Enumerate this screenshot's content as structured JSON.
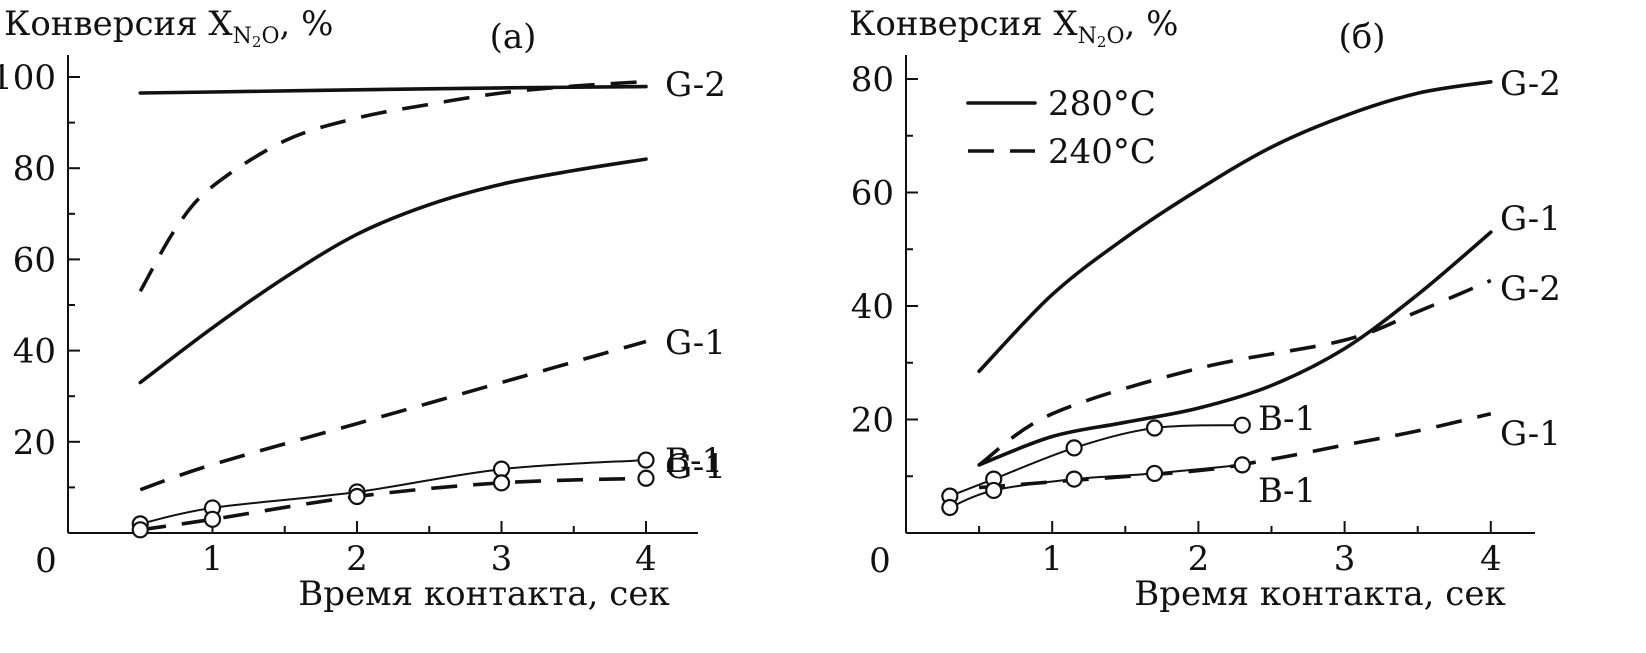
{
  "chart_data": [
    {
      "type": "line",
      "panel_label": "(а)",
      "ylabel": "Конверсия X",
      "ylabel_sub": "N",
      "ylabel_sub2": "2",
      "ylabel_sub3": "O",
      "ylabel_unit": ", %",
      "xlabel": "Время контакта, сек",
      "xlim": [
        0,
        4.3
      ],
      "ylim": [
        0,
        100
      ],
      "x_ticks": [
        "0",
        "1",
        "2",
        "3",
        "4"
      ],
      "y_ticks": [
        "20",
        "40",
        "60",
        "80",
        "100"
      ],
      "series": [
        {
          "label": "G-2",
          "style": "solid",
          "x": [
            0.5,
            1.0,
            2.0,
            3.0,
            4.0
          ],
          "y": [
            96.5,
            96.7,
            97.2,
            97.6,
            97.9
          ]
        },
        {
          "label": "",
          "style": "dashed",
          "x": [
            0.5,
            0.75,
            1.0,
            1.5,
            2.0,
            2.5,
            3.0,
            3.5,
            4.0
          ],
          "y": [
            53,
            67,
            76,
            86,
            91,
            94,
            96.5,
            98,
            99
          ]
        },
        {
          "label": "G-1",
          "style": "solid",
          "x": [
            0.5,
            1.0,
            1.5,
            2.0,
            2.5,
            3.0,
            3.5,
            4.0
          ],
          "y": [
            33,
            45,
            56,
            65.5,
            72,
            76.5,
            79.5,
            82
          ]
        },
        {
          "label": "G-1",
          "style": "dashed",
          "x": [
            0.5,
            1.0,
            2.0,
            3.0,
            4.0
          ],
          "y": [
            9.5,
            15,
            24,
            33,
            42
          ]
        },
        {
          "label": "В-1",
          "style": "thin",
          "markers": true,
          "x": [
            0.5,
            1.0,
            2.0,
            3.0,
            4.0
          ],
          "y": [
            2,
            5.5,
            9,
            14,
            16
          ]
        },
        {
          "label": "",
          "style": "dashed",
          "markers": true,
          "x": [
            0.5,
            1.0,
            2.0,
            3.0,
            4.0
          ],
          "y": [
            0.7,
            3,
            8,
            11,
            12
          ]
        }
      ]
    },
    {
      "type": "line",
      "panel_label": "(б)",
      "ylabel": "Конверсия X",
      "ylabel_sub": "N",
      "ylabel_sub2": "2",
      "ylabel_sub3": "O",
      "ylabel_unit": ", %",
      "xlabel": "Время контакта, сек",
      "xlim": [
        0,
        4.3
      ],
      "ylim": [
        0,
        80
      ],
      "x_ticks": [
        "0",
        "1",
        "2",
        "3",
        "4"
      ],
      "y_ticks": [
        "20",
        "40",
        "60",
        "80"
      ],
      "legend": [
        {
          "label": "280°C",
          "style": "solid"
        },
        {
          "label": "240°C",
          "style": "dashed"
        }
      ],
      "legend_position": "top-left",
      "series": [
        {
          "label": "G-2",
          "style": "solid",
          "x": [
            0.5,
            1.0,
            1.5,
            2.0,
            2.5,
            3.0,
            3.5,
            4.0
          ],
          "y": [
            28.5,
            42,
            52,
            60.5,
            68,
            73.5,
            77.5,
            79.5
          ]
        },
        {
          "label": "G-1",
          "style": "solid",
          "x": [
            0.5,
            1.0,
            1.5,
            2.0,
            2.5,
            3.0,
            3.5,
            4.0
          ],
          "y": [
            12,
            17,
            19.5,
            22,
            26,
            32.5,
            42,
            53
          ]
        },
        {
          "label": "G-2",
          "style": "dashed",
          "x": [
            0.5,
            1.0,
            2.0,
            3.0,
            3.5,
            4.0
          ],
          "y": [
            12,
            21,
            29,
            34,
            39,
            44.5
          ]
        },
        {
          "label": "G-1",
          "style": "dashed",
          "x": [
            0.5,
            1.0,
            2.0,
            2.5,
            3.0,
            3.5,
            4.0
          ],
          "y": [
            8,
            9,
            11,
            13,
            15.5,
            18,
            21
          ]
        },
        {
          "label": "В-1",
          "style": "thin",
          "markers": true,
          "x": [
            0.3,
            0.6,
            1.15,
            1.7,
            2.3
          ],
          "y": [
            6.5,
            9.5,
            15,
            18.5,
            19
          ]
        },
        {
          "label": "В-1",
          "style": "thin",
          "markers": true,
          "x": [
            0.3,
            0.6,
            1.15,
            1.7,
            2.3
          ],
          "y": [
            4.5,
            7.5,
            9.5,
            10.5,
            12
          ]
        }
      ]
    }
  ]
}
